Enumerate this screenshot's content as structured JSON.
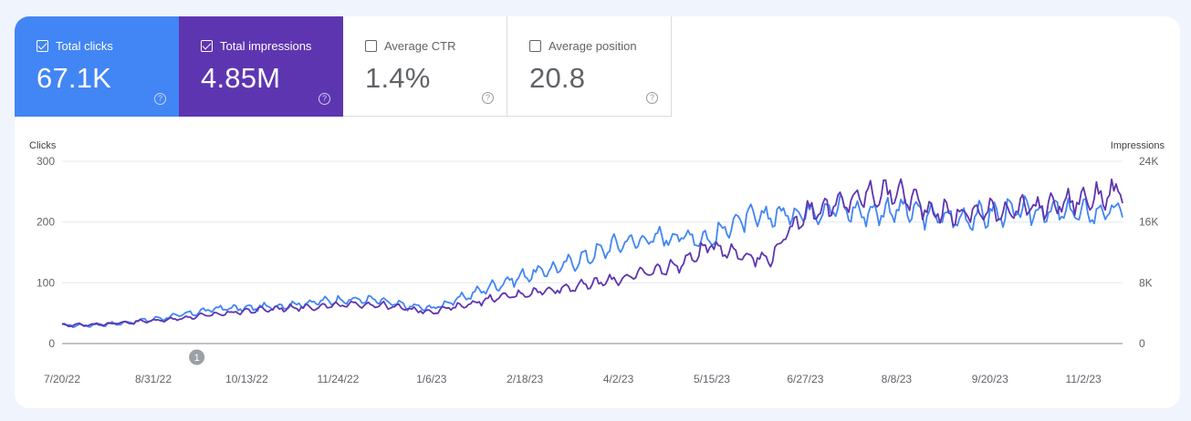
{
  "metrics": {
    "clicks": {
      "label": "Total clicks",
      "value": "67.1K",
      "checked": true,
      "color": "#4285f4"
    },
    "impressions": {
      "label": "Total impressions",
      "value": "4.85M",
      "checked": true,
      "color": "#5e35b1"
    },
    "ctr": {
      "label": "Average CTR",
      "value": "1.4%",
      "checked": false
    },
    "position": {
      "label": "Average position",
      "value": "20.8",
      "checked": false
    },
    "help_glyph": "?"
  },
  "annotation": {
    "label": "1",
    "date": "9/20/22"
  },
  "chart_data": {
    "type": "line",
    "left_axis_title": "Clicks",
    "right_axis_title": "Impressions",
    "left_ticks": [
      "300",
      "200",
      "100",
      "0"
    ],
    "right_ticks": [
      "24K",
      "16K",
      "8K",
      "0"
    ],
    "ylim_left": [
      0,
      300
    ],
    "ylim_right": [
      0,
      24000
    ],
    "x_tick_labels": [
      "7/20/22",
      "8/31/22",
      "10/13/22",
      "11/24/22",
      "1/6/23",
      "2/18/23",
      "4/2/23",
      "5/15/23",
      "6/27/23",
      "8/8/23",
      "9/20/23",
      "11/2/23"
    ],
    "xlim": [
      "7/20/22",
      "11/20/23"
    ],
    "grid": true,
    "series": [
      {
        "name": "Clicks",
        "axis": "left",
        "color": "#4285f4",
        "points": [
          [
            "7/20/22",
            30
          ],
          [
            "8/1/22",
            30
          ],
          [
            "8/15/22",
            33
          ],
          [
            "8/31/22",
            40
          ],
          [
            "9/15/22",
            48
          ],
          [
            "9/30/22",
            58
          ],
          [
            "10/13/22",
            58
          ],
          [
            "10/31/22",
            63
          ],
          [
            "11/24/22",
            72
          ],
          [
            "12/10/22",
            72
          ],
          [
            "12/25/22",
            62
          ],
          [
            "1/6/23",
            58
          ],
          [
            "1/20/23",
            75
          ],
          [
            "2/1/23",
            92
          ],
          [
            "2/18/23",
            112
          ],
          [
            "3/5/23",
            125
          ],
          [
            "3/20/23",
            145
          ],
          [
            "4/2/23",
            165
          ],
          [
            "4/15/23",
            172
          ],
          [
            "5/1/23",
            178
          ],
          [
            "5/15/23",
            172
          ],
          [
            "5/25/23",
            200
          ],
          [
            "6/10/23",
            210
          ],
          [
            "6/27/23",
            218
          ],
          [
            "7/10/23",
            225
          ],
          [
            "7/25/23",
            215
          ],
          [
            "8/8/23",
            222
          ],
          [
            "8/25/23",
            210
          ],
          [
            "9/5/23",
            205
          ],
          [
            "9/20/23",
            213
          ],
          [
            "10/10/23",
            218
          ],
          [
            "11/2/23",
            215
          ],
          [
            "11/20/23",
            218
          ]
        ]
      },
      {
        "name": "Impressions",
        "axis": "right",
        "color": "#5e35b1",
        "points": [
          [
            "7/20/22",
            2400
          ],
          [
            "8/1/22",
            2500
          ],
          [
            "8/15/22",
            2700
          ],
          [
            "8/31/22",
            3000
          ],
          [
            "9/15/22",
            3400
          ],
          [
            "9/30/22",
            3900
          ],
          [
            "10/13/22",
            4300
          ],
          [
            "10/31/22",
            4700
          ],
          [
            "11/24/22",
            5000
          ],
          [
            "12/10/22",
            5200
          ],
          [
            "12/25/22",
            4600
          ],
          [
            "1/6/23",
            4200
          ],
          [
            "1/20/23",
            5000
          ],
          [
            "2/1/23",
            5800
          ],
          [
            "2/18/23",
            6600
          ],
          [
            "3/5/23",
            7200
          ],
          [
            "3/20/23",
            7800
          ],
          [
            "4/2/23",
            8500
          ],
          [
            "4/15/23",
            9300
          ],
          [
            "5/1/23",
            10500
          ],
          [
            "5/15/23",
            13000
          ],
          [
            "5/25/23",
            12000
          ],
          [
            "6/10/23",
            11000
          ],
          [
            "6/27/23",
            17500
          ],
          [
            "7/10/23",
            18000
          ],
          [
            "7/25/23",
            19500
          ],
          [
            "8/8/23",
            20000
          ],
          [
            "8/25/23",
            17500
          ],
          [
            "9/5/23",
            17000
          ],
          [
            "9/20/23",
            17500
          ],
          [
            "10/10/23",
            17800
          ],
          [
            "11/2/23",
            19000
          ],
          [
            "11/20/23",
            20000
          ]
        ]
      }
    ]
  }
}
